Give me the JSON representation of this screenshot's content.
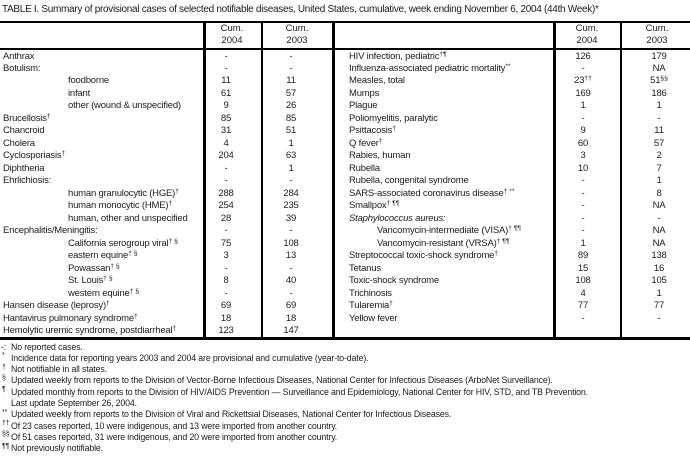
{
  "title": "TABLE I. Summary of provisional cases of selected notifiable diseases, United States, cumulative, week ending November 6, 2004 (44th Week)*",
  "table": {
    "header": {
      "cum": "Cum.",
      "year_2004": "2004",
      "year_2003": "2003"
    },
    "left_rows": [
      {
        "label": "Anthrax",
        "sup": "",
        "ind": 0,
        "c04": "-",
        "c04s": "",
        "c03": "-",
        "c03s": ""
      },
      {
        "label": "Botulism:",
        "sup": "",
        "ind": 0,
        "c04": "-",
        "c04s": "",
        "c03": "-",
        "c03s": ""
      },
      {
        "label": "foodborne",
        "sup": "",
        "ind": 1,
        "c04": "11",
        "c04s": "",
        "c03": "11",
        "c03s": ""
      },
      {
        "label": "infant",
        "sup": "",
        "ind": 1,
        "c04": "61",
        "c04s": "",
        "c03": "57",
        "c03s": ""
      },
      {
        "label": "other (wound & unspecified)",
        "sup": "",
        "ind": 1,
        "c04": "9",
        "c04s": "",
        "c03": "26",
        "c03s": ""
      },
      {
        "label": "Brucellosis",
        "sup": "†",
        "ind": 0,
        "c04": "85",
        "c04s": "",
        "c03": "85",
        "c03s": ""
      },
      {
        "label": "Chancroid",
        "sup": "",
        "ind": 0,
        "c04": "31",
        "c04s": "",
        "c03": "51",
        "c03s": ""
      },
      {
        "label": "Cholera",
        "sup": "",
        "ind": 0,
        "c04": "4",
        "c04s": "",
        "c03": "1",
        "c03s": ""
      },
      {
        "label": "Cyclosporiasis",
        "sup": "†",
        "ind": 0,
        "c04": "204",
        "c04s": "",
        "c03": "63",
        "c03s": ""
      },
      {
        "label": "Diphtheria",
        "sup": "",
        "ind": 0,
        "c04": "-",
        "c04s": "",
        "c03": "1",
        "c03s": ""
      },
      {
        "label": "Ehrlichiosis:",
        "sup": "",
        "ind": 0,
        "c04": "-",
        "c04s": "",
        "c03": "-",
        "c03s": ""
      },
      {
        "label": "human granulocytic (HGE)",
        "sup": "†",
        "ind": 1,
        "c04": "288",
        "c04s": "",
        "c03": "284",
        "c03s": ""
      },
      {
        "label": "human monocytic (HME)",
        "sup": "†",
        "ind": 1,
        "c04": "254",
        "c04s": "",
        "c03": "235",
        "c03s": ""
      },
      {
        "label": "human, other and unspecified",
        "sup": "",
        "ind": 1,
        "c04": "28",
        "c04s": "",
        "c03": "39",
        "c03s": ""
      },
      {
        "label": "Encephalitis/Meningitis:",
        "sup": "",
        "ind": 0,
        "c04": "-",
        "c04s": "",
        "c03": "-",
        "c03s": ""
      },
      {
        "label": "California serogroup viral",
        "sup": "† §",
        "ind": 1,
        "c04": "75",
        "c04s": "",
        "c03": "108",
        "c03s": ""
      },
      {
        "label": "eastern equine",
        "sup": "† §",
        "ind": 1,
        "c04": "3",
        "c04s": "",
        "c03": "13",
        "c03s": ""
      },
      {
        "label": "Powassan",
        "sup": "† §",
        "ind": 1,
        "c04": "-",
        "c04s": "",
        "c03": "-",
        "c03s": ""
      },
      {
        "label": "St. Louis",
        "sup": "† §",
        "ind": 1,
        "c04": "8",
        "c04s": "",
        "c03": "40",
        "c03s": ""
      },
      {
        "label": "western equine",
        "sup": "† §",
        "ind": 1,
        "c04": "-",
        "c04s": "",
        "c03": "-",
        "c03s": ""
      },
      {
        "label": "Hansen disease (leprosy)",
        "sup": "†",
        "ind": 0,
        "c04": "69",
        "c04s": "",
        "c03": "69",
        "c03s": ""
      },
      {
        "label": "Hantavirus pulmonary syndrome",
        "sup": "†",
        "ind": 0,
        "c04": "18",
        "c04s": "",
        "c03": "18",
        "c03s": ""
      },
      {
        "label": "Hemolytic uremic syndrome, postdiarrheal",
        "sup": "†",
        "ind": 0,
        "c04": "123",
        "c04s": "",
        "c03": "147",
        "c03s": ""
      }
    ],
    "right_rows": [
      {
        "label": "HIV infection, pediatric",
        "sup": "†¶",
        "ind": 0,
        "c04": "126",
        "c04s": "",
        "c03": "179",
        "c03s": ""
      },
      {
        "label": "Influenza-associated pediatric mortality",
        "sup": "**",
        "ind": 0,
        "c04": "-",
        "c04s": "",
        "c03": "NA",
        "c03s": ""
      },
      {
        "label": "Measles, total",
        "sup": "",
        "ind": 0,
        "c04": "23",
        "c04s": "††",
        "c03": "51",
        "c03s": "§§"
      },
      {
        "label": "Mumps",
        "sup": "",
        "ind": 0,
        "c04": "169",
        "c04s": "",
        "c03": "186",
        "c03s": ""
      },
      {
        "label": "Plague",
        "sup": "",
        "ind": 0,
        "c04": "1",
        "c04s": "",
        "c03": "1",
        "c03s": ""
      },
      {
        "label": "Poliomyelitis, paralytic",
        "sup": "",
        "ind": 0,
        "c04": "-",
        "c04s": "",
        "c03": "-",
        "c03s": ""
      },
      {
        "label": "Psittacosis",
        "sup": "†",
        "ind": 0,
        "c04": "9",
        "c04s": "",
        "c03": "11",
        "c03s": ""
      },
      {
        "label": "Q fever",
        "sup": "†",
        "ind": 0,
        "c04": "60",
        "c04s": "",
        "c03": "57",
        "c03s": ""
      },
      {
        "label": "Rabies, human",
        "sup": "",
        "ind": 0,
        "c04": "3",
        "c04s": "",
        "c03": "2",
        "c03s": ""
      },
      {
        "label": "Rubella",
        "sup": "",
        "ind": 0,
        "c04": "10",
        "c04s": "",
        "c03": "7",
        "c03s": ""
      },
      {
        "label": "Rubella, congenital syndrome",
        "sup": "",
        "ind": 0,
        "c04": "-",
        "c04s": "",
        "c03": "1",
        "c03s": ""
      },
      {
        "label": "SARS-associated coronavirus disease",
        "sup": "† **",
        "ind": 0,
        "c04": "-",
        "c04s": "",
        "c03": "8",
        "c03s": ""
      },
      {
        "label": "Smallpox",
        "sup": "† ¶¶",
        "ind": 0,
        "c04": "-",
        "c04s": "",
        "c03": "NA",
        "c03s": ""
      },
      {
        "label": "Staphylococcus aureus:",
        "sup": "",
        "ind": 0,
        "it": true,
        "c04": "-",
        "c04s": "",
        "c03": "-",
        "c03s": ""
      },
      {
        "label": "Vancomycin-intermediate (VISA)",
        "sup": "† ¶¶",
        "ind": 1,
        "c04": "-",
        "c04s": "",
        "c03": "NA",
        "c03s": ""
      },
      {
        "label": "Vancomycin-resistant (VRSA)",
        "sup": "† ¶¶",
        "ind": 1,
        "c04": "1",
        "c04s": "",
        "c03": "NA",
        "c03s": ""
      },
      {
        "label": "Streptococcal toxic-shock syndrome",
        "sup": "†",
        "ind": 0,
        "c04": "89",
        "c04s": "",
        "c03": "138",
        "c03s": ""
      },
      {
        "label": "Tetanus",
        "sup": "",
        "ind": 0,
        "c04": "15",
        "c04s": "",
        "c03": "16",
        "c03s": ""
      },
      {
        "label": "Toxic-shock syndrome",
        "sup": "",
        "ind": 0,
        "c04": "108",
        "c04s": "",
        "c03": "105",
        "c03s": ""
      },
      {
        "label": "Trichinosis",
        "sup": "",
        "ind": 0,
        "c04": "4",
        "c04s": "",
        "c03": "1",
        "c03s": ""
      },
      {
        "label": "Tularemia",
        "sup": "†",
        "ind": 0,
        "c04": "77",
        "c04s": "",
        "c03": "77",
        "c03s": ""
      },
      {
        "label": "Yellow fever",
        "sup": "",
        "ind": 0,
        "c04": "-",
        "c04s": "",
        "c03": "-",
        "c03s": ""
      }
    ]
  },
  "footnotes": [
    {
      "marker": "-:",
      "raised": false,
      "text": "No reported cases."
    },
    {
      "marker": "*",
      "raised": true,
      "text": "Incidence data for reporting years 2003 and 2004 are provisional and cumulative (year-to-date)."
    },
    {
      "marker": "†",
      "raised": true,
      "text": "Not notifiable in all states."
    },
    {
      "marker": "§",
      "raised": true,
      "text": "Updated weekly from reports to the Division of Vector-Borne Infectious Diseases, National Center for Infectious Diseases (ArboNet Surveillance)."
    },
    {
      "marker": "¶",
      "raised": true,
      "text": "Updated monthly from reports to the Division of HIV/AIDS Prevention — Surveillance and Epidemiology, National Center for HIV, STD, and TB Prevention."
    },
    {
      "marker": "",
      "raised": false,
      "text": "Last update September 26, 2004."
    },
    {
      "marker": "**",
      "raised": true,
      "text": "Updated weekly from reports to the Division of Viral and Rickettsial Diseases, National Center for Infectious Diseases."
    },
    {
      "marker": "††",
      "raised": true,
      "text": "Of 23 cases reported, 10 were indigenous, and 13 were imported from another country."
    },
    {
      "marker": "§§",
      "raised": true,
      "text": "Of 51 cases reported, 31 were indigenous, and 20 were imported from another country."
    },
    {
      "marker": "¶¶",
      "raised": true,
      "text": "Not previously notifiable."
    }
  ]
}
